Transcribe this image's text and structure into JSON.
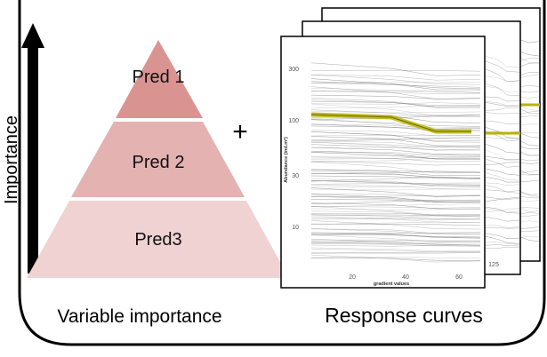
{
  "importance_axis": {
    "label": "Importance"
  },
  "pyramid": {
    "levels": [
      {
        "label": "Pred 1",
        "color": "#d99492"
      },
      {
        "label": "Pred 2",
        "color": "#e3b2b1"
      },
      {
        "label": "Pred3",
        "color": "#efd2d1"
      }
    ]
  },
  "plus_symbol": "+",
  "response_plot": {
    "y_axis_label": "Abundance (ind.m²)",
    "y_ticks": [
      "300",
      "100",
      "30",
      "10"
    ],
    "x_axis_label": "gradient values",
    "x_ticks": [
      "20",
      "40",
      "60"
    ],
    "back_x_tick": "125",
    "mean_curve_color": "#b8b400"
  },
  "captions": {
    "left": "Variable importance",
    "right": "Response curves"
  },
  "colors": {
    "frame": "#000000",
    "curves": "#555555"
  }
}
